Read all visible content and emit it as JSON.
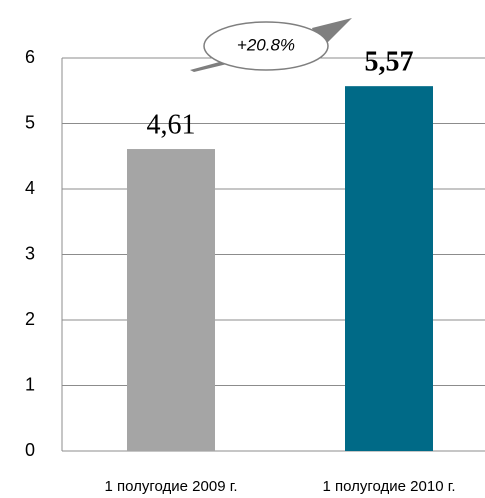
{
  "chart_data": {
    "type": "bar",
    "categories": [
      "1 полугодие 2009 г.",
      "1 полугодие 2010 г."
    ],
    "values": [
      4.61,
      5.57
    ],
    "value_labels": [
      "4,61",
      "5,57"
    ],
    "colors": [
      "#a5a5a5",
      "#006a87"
    ],
    "ylim": [
      0,
      6
    ],
    "yticks": [
      0,
      1,
      2,
      3,
      4,
      5,
      6
    ],
    "grid": true,
    "annotation": "+20.8%"
  }
}
